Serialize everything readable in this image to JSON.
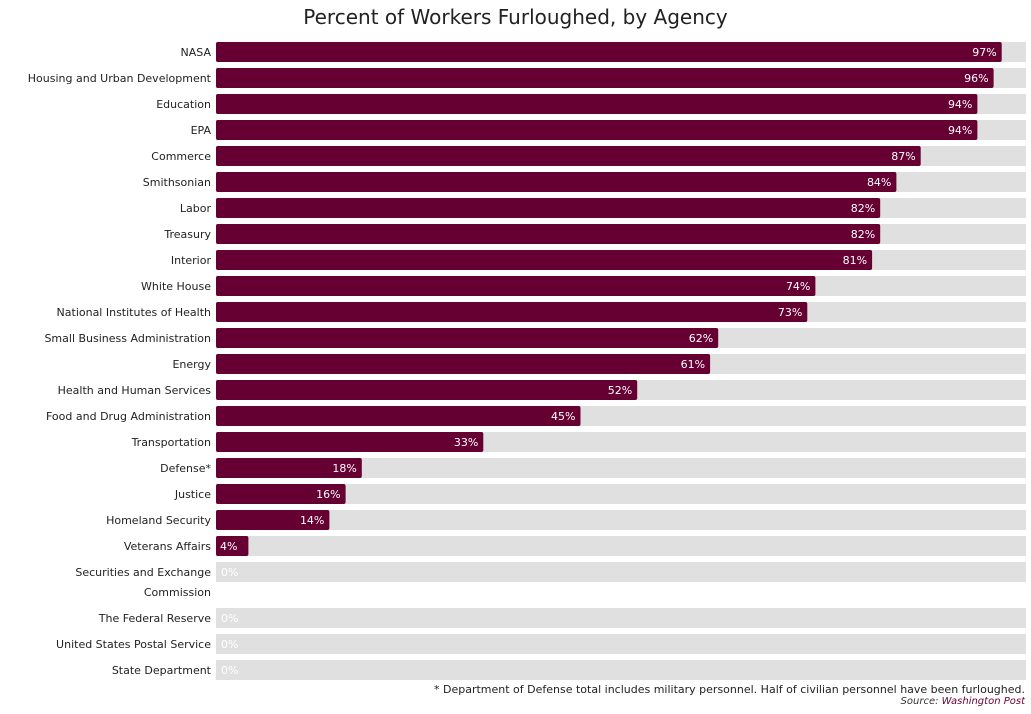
{
  "chart_data": {
    "type": "bar",
    "orientation": "horizontal",
    "title": "Percent of Workers Furloughed, by Agency",
    "categories": [
      "NASA",
      "Housing and Urban Development",
      "Education",
      "EPA",
      "Commerce",
      "Smithsonian",
      "Labor",
      "Treasury",
      "Interior",
      "White House",
      "National Institutes of Health",
      "Small Business Administration",
      "Energy",
      "Health and Human Services",
      "Food and Drug Administration",
      "Transportation",
      "Defense*",
      "Justice",
      "Homeland Security",
      "Veterans Affairs",
      "Securities and Exchange Commission",
      "The Federal Reserve",
      "United States Postal Service",
      "State Department"
    ],
    "values": [
      97,
      96,
      94,
      94,
      87,
      84,
      82,
      82,
      81,
      74,
      73,
      62,
      61,
      52,
      45,
      33,
      18,
      16,
      14,
      4,
      0,
      0,
      0,
      0
    ],
    "value_labels": [
      "97%",
      "96%",
      "94%",
      "94%",
      "87%",
      "84%",
      "82%",
      "82%",
      "81%",
      "74%",
      "73%",
      "62%",
      "61%",
      "52%",
      "45%",
      "33%",
      "18%",
      "16%",
      "14%",
      "4%",
      "0%",
      "0%",
      "0%",
      "0%"
    ],
    "xlim": [
      0,
      100
    ],
    "grid": false,
    "colors": {
      "bar": "#660033",
      "track": "#e0e0e0",
      "value_text": "#ffffff"
    }
  },
  "footnote": "* Department of Defense total includes military personnel. Half of civilian personnel have been furloughed.",
  "source": {
    "prefix": "Source: ",
    "name": "Washington Post"
  }
}
